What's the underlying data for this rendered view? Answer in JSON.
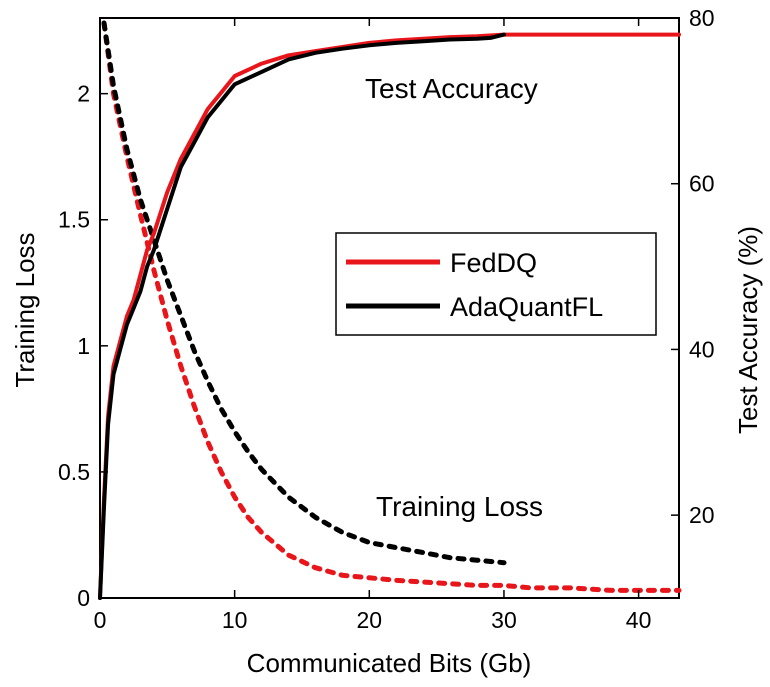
{
  "chart_data": {
    "type": "line",
    "xlabel": "Communicated  Bits (Gb)",
    "ylabel_left": "Training  Loss",
    "ylabel_right": "Test  Accuracy (%)",
    "xlim": [
      0,
      43
    ],
    "ylim_left": [
      0,
      2.3
    ],
    "ylim_right": [
      10,
      80
    ],
    "x_ticks": [
      0,
      10,
      20,
      30,
      40
    ],
    "y_left_ticks": [
      0,
      0.5,
      1,
      1.5,
      2
    ],
    "y_right_ticks": [
      20,
      40,
      60,
      80
    ],
    "grid": false,
    "legend_position": "center-right",
    "annotations": {
      "accuracy": "Test  Accuracy",
      "loss": "Training  Loss"
    },
    "series": [
      {
        "name": "FedDQ",
        "color": "#e8161b",
        "accuracy": {
          "axis": "right",
          "style": "solid",
          "x": [
            0,
            0.3,
            0.6,
            1,
            1.5,
            2,
            2.5,
            3,
            3.5,
            4,
            5,
            6,
            7,
            8,
            9,
            10,
            12,
            14,
            16,
            18,
            20,
            22,
            24,
            26,
            28,
            30,
            32,
            34,
            36,
            38,
            40,
            42,
            43
          ],
          "y": [
            10,
            22,
            32,
            38,
            41,
            44,
            46,
            49,
            52,
            54,
            59,
            63,
            66,
            69,
            71,
            73,
            74.5,
            75.5,
            76,
            76.5,
            77,
            77.3,
            77.5,
            77.7,
            77.8,
            78,
            78,
            78,
            78,
            78,
            78,
            78,
            78
          ]
        },
        "loss": {
          "axis": "left",
          "style": "dotted",
          "x": [
            0.3,
            1,
            2,
            3,
            4,
            5,
            6,
            7,
            8,
            9,
            10,
            11,
            12,
            14,
            16,
            18,
            20,
            22,
            25,
            28,
            30,
            32,
            35,
            38,
            40,
            42,
            43
          ],
          "y": [
            2.28,
            2.0,
            1.75,
            1.52,
            1.3,
            1.1,
            0.92,
            0.76,
            0.62,
            0.5,
            0.4,
            0.32,
            0.26,
            0.17,
            0.12,
            0.09,
            0.08,
            0.07,
            0.06,
            0.05,
            0.05,
            0.04,
            0.04,
            0.03,
            0.03,
            0.03,
            0.03
          ]
        }
      },
      {
        "name": "AdaQuantFL",
        "color": "#000000",
        "accuracy": {
          "axis": "right",
          "style": "solid",
          "x": [
            0,
            0.3,
            0.6,
            1,
            1.5,
            2,
            2.5,
            3,
            3.5,
            4,
            5,
            6,
            7,
            8,
            9,
            10,
            12,
            14,
            16,
            18,
            20,
            22,
            24,
            26,
            28,
            29,
            30
          ],
          "y": [
            10,
            21,
            31,
            37,
            40,
            43,
            45,
            47,
            50,
            52,
            57,
            62,
            65,
            68,
            70,
            72,
            73.5,
            75,
            75.8,
            76.3,
            76.7,
            77,
            77.2,
            77.4,
            77.5,
            77.6,
            78
          ]
        },
        "loss": {
          "axis": "left",
          "style": "dotted",
          "x": [
            0.3,
            1,
            2,
            3,
            4,
            5,
            6,
            7,
            8,
            9,
            10,
            11,
            12,
            14,
            16,
            18,
            20,
            22,
            24,
            26,
            28,
            30
          ],
          "y": [
            2.28,
            2.03,
            1.78,
            1.58,
            1.42,
            1.26,
            1.12,
            0.98,
            0.86,
            0.75,
            0.66,
            0.58,
            0.51,
            0.4,
            0.32,
            0.26,
            0.22,
            0.2,
            0.18,
            0.16,
            0.15,
            0.14
          ]
        }
      }
    ]
  }
}
